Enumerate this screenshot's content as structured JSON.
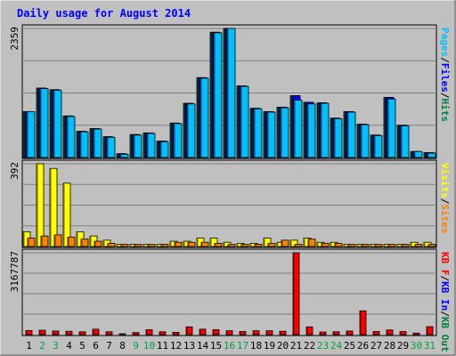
{
  "chart_data": [
    {
      "type": "bar",
      "title": "Daily usage for August 2014",
      "ylabel_max": "2359",
      "ymax": 2359,
      "legend": [
        {
          "label": "Pages",
          "color": "#00c0ff"
        },
        {
          "label": "Files",
          "color": "#0000ff"
        },
        {
          "label": "Hits",
          "color": "#008040"
        }
      ],
      "separator": "/",
      "categories": [
        "1",
        "2",
        "3",
        "4",
        "5",
        "6",
        "7",
        "8",
        "9",
        "10",
        "11",
        "12",
        "13",
        "14",
        "15",
        "16",
        "17",
        "18",
        "19",
        "20",
        "21",
        "22",
        "23",
        "24",
        "25",
        "26",
        "27",
        "28",
        "29",
        "30",
        "31"
      ],
      "weekend_days": [
        2,
        3,
        9,
        10,
        16,
        17,
        23,
        24,
        30,
        31
      ],
      "series": [
        {
          "name": "Hits",
          "color": "#008040",
          "values": [
            840,
            1270,
            1240,
            760,
            480,
            530,
            380,
            70,
            420,
            450,
            300,
            630,
            990,
            1460,
            2290,
            2359,
            1310,
            900,
            840,
            920,
            1130,
            1010,
            1000,
            720,
            840,
            610,
            410,
            1100,
            590,
            110,
            90
          ]
        },
        {
          "name": "Files",
          "color": "#0000ff",
          "values": [
            840,
            1270,
            1240,
            760,
            480,
            530,
            380,
            70,
            420,
            450,
            300,
            630,
            990,
            1460,
            2290,
            2359,
            1310,
            900,
            840,
            920,
            1130,
            1010,
            1000,
            720,
            840,
            610,
            410,
            1100,
            590,
            110,
            90
          ]
        },
        {
          "name": "Pages",
          "color": "#00c0ff",
          "values": [
            840,
            1260,
            1230,
            750,
            470,
            520,
            370,
            60,
            410,
            440,
            290,
            620,
            980,
            1450,
            2280,
            2359,
            1300,
            890,
            830,
            910,
            1050,
            980,
            990,
            710,
            830,
            600,
            400,
            1070,
            580,
            110,
            80
          ]
        }
      ]
    },
    {
      "type": "bar",
      "ylabel_max": "392",
      "ymax": 392,
      "legend": [
        {
          "label": "Visits",
          "color": "#ffff00"
        },
        {
          "label": "Sites",
          "color": "#ff8000"
        }
      ],
      "separator": "/",
      "series": [
        {
          "name": "Visits",
          "color": "#ffff00",
          "values": [
            70,
            392,
            370,
            300,
            70,
            50,
            30,
            10,
            10,
            10,
            10,
            25,
            25,
            40,
            40,
            20,
            15,
            15,
            40,
            20,
            30,
            40,
            20,
            20,
            10,
            10,
            10,
            10,
            10,
            20,
            20
          ]
        },
        {
          "name": "Sites",
          "color": "#ff8000",
          "values": [
            40,
            50,
            55,
            45,
            35,
            25,
            15,
            10,
            10,
            10,
            10,
            20,
            20,
            20,
            15,
            10,
            10,
            10,
            15,
            30,
            10,
            35,
            15,
            15,
            10,
            10,
            10,
            10,
            10,
            10,
            10
          ]
        }
      ]
    },
    {
      "type": "bar",
      "ylabel_max": "3167787",
      "ymax": 3167787,
      "legend": [
        {
          "label": "KB F",
          "color": "#ff0000"
        },
        {
          "label": "KB In",
          "color": "#0000ff"
        },
        {
          "label": "KB Out",
          "color": "#008040"
        }
      ],
      "separator": "/",
      "series": [
        {
          "name": "KB F",
          "color": "#ff0000",
          "values": [
            160000,
            170000,
            140000,
            130000,
            110000,
            210000,
            110000,
            30000,
            80000,
            190000,
            110000,
            90000,
            300000,
            210000,
            190000,
            150000,
            120000,
            150000,
            150000,
            130000,
            3167787,
            300000,
            100000,
            110000,
            140000,
            920000,
            120000,
            180000,
            120000,
            60000,
            310000
          ]
        }
      ]
    }
  ]
}
